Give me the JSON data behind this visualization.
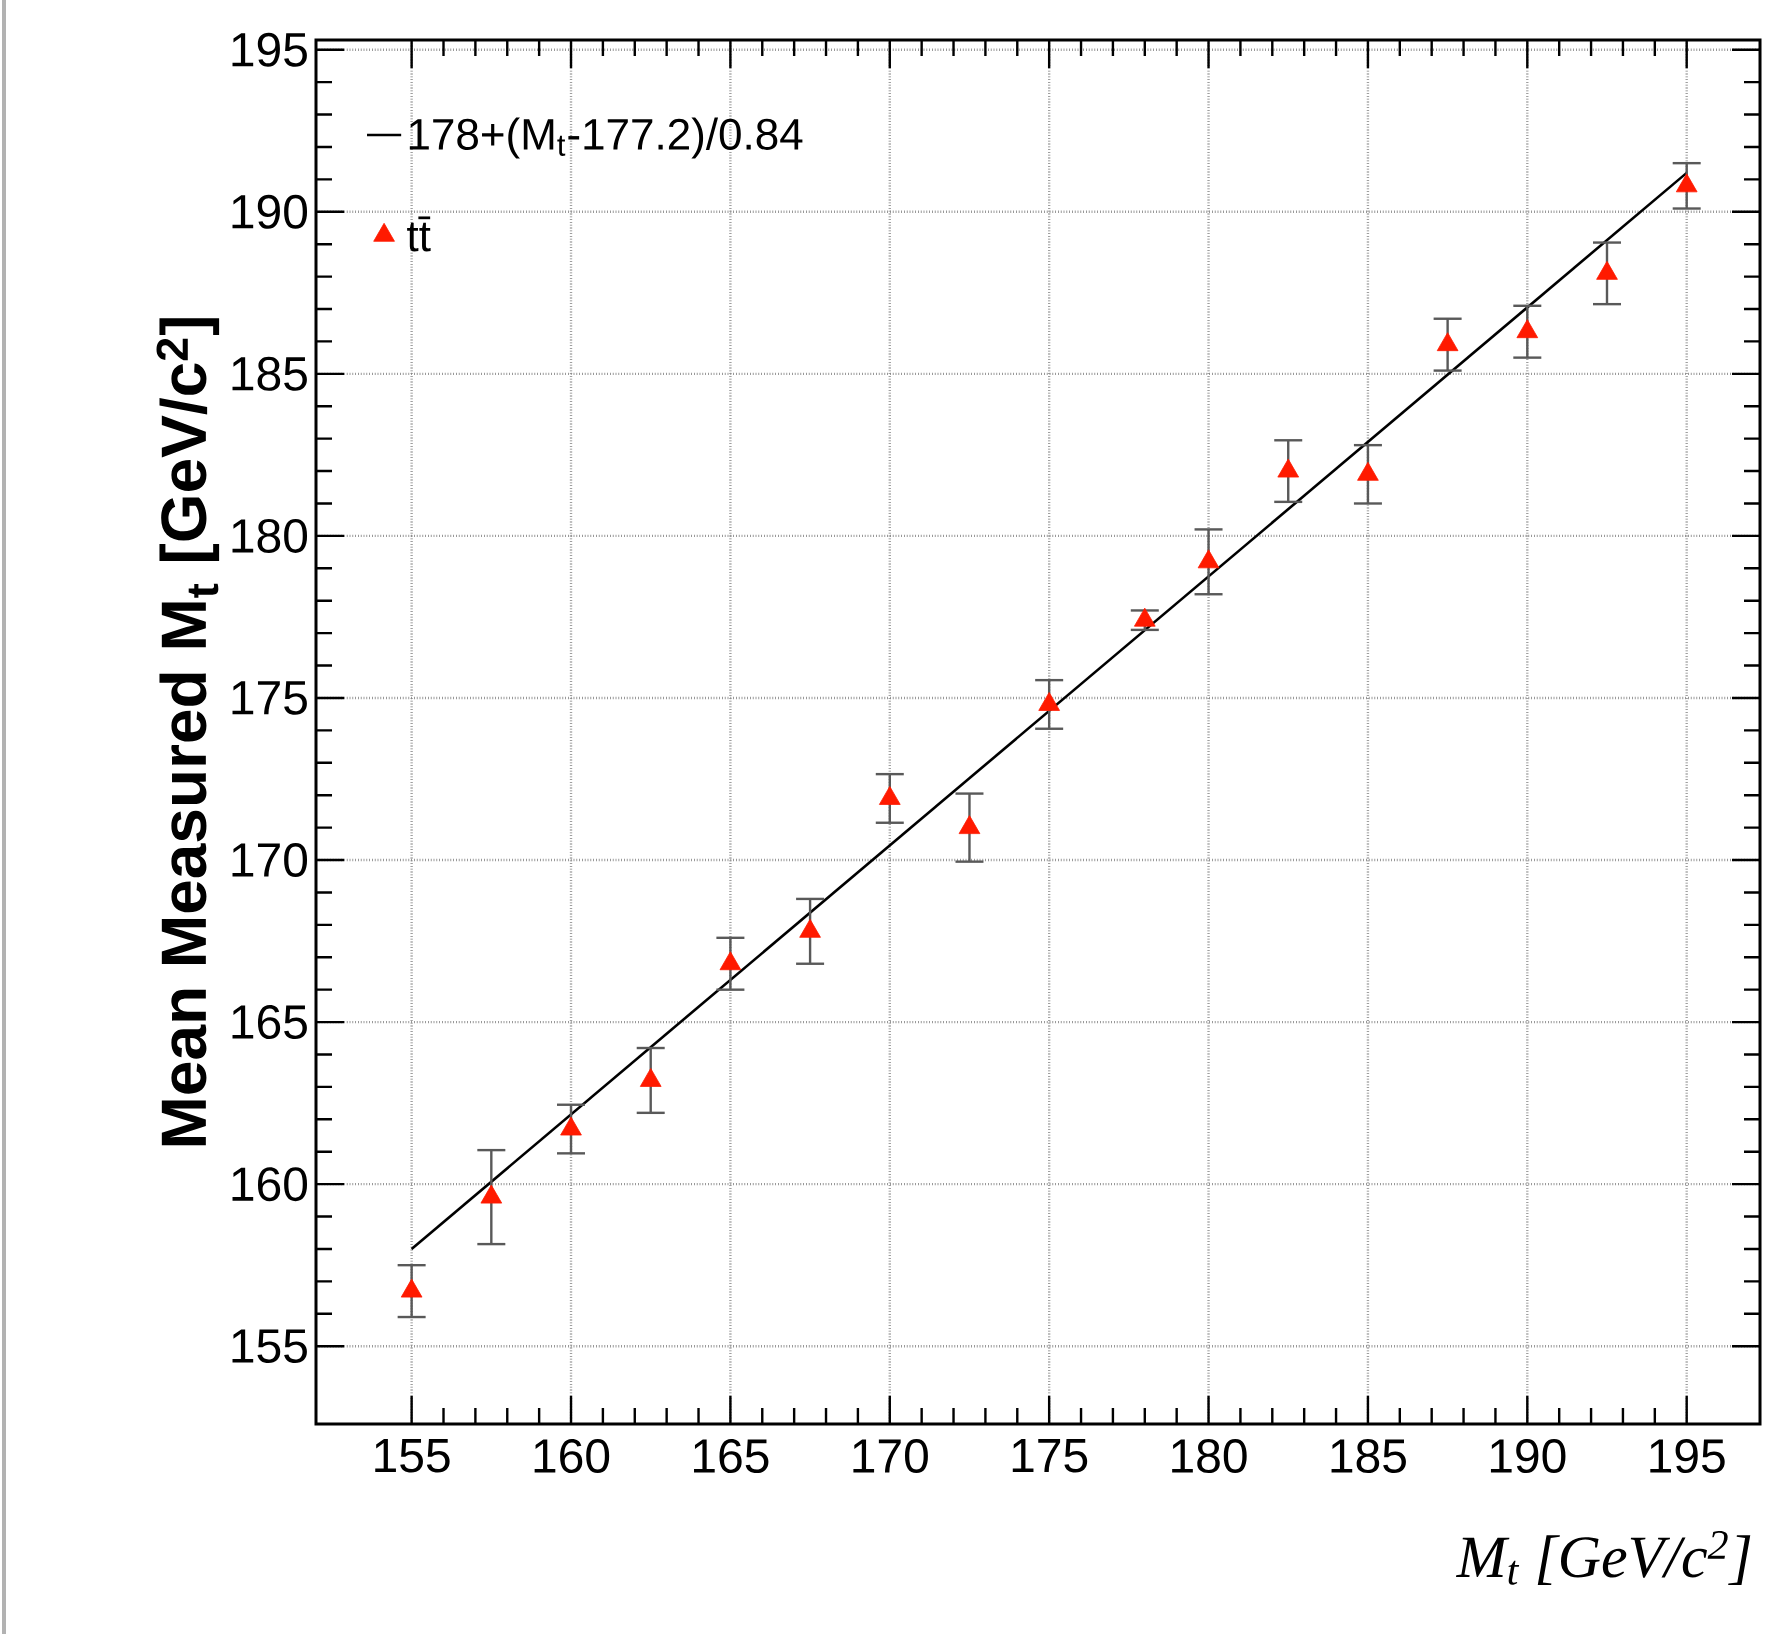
{
  "chart_data": {
    "type": "scatter",
    "xlabel": "M$_{t}$ [GeV/c$^{2}$]",
    "ylabel": "Mean Measured M$_{t}$ [GeV/c$^{2}$]",
    "xlim": [
      152,
      197.3
    ],
    "ylim": [
      152.6,
      195.3
    ],
    "xticks": [
      155,
      160,
      165,
      170,
      175,
      180,
      185,
      190,
      195
    ],
    "yticks": [
      155,
      160,
      165,
      170,
      175,
      180,
      185,
      190,
      195
    ],
    "grid": true,
    "legend": "top left",
    "series": [
      {
        "name": "178+(M$_{t}$-177.2)/0.84",
        "type": "line",
        "color": "#000000",
        "x": [
          155,
          195
        ],
        "values": [
          158.0,
          191.2
        ]
      },
      {
        "name": "tt̄",
        "type": "scatter",
        "marker": "triangle",
        "color": "#ff1a00",
        "x": [
          155,
          157.5,
          160,
          162.5,
          165,
          167.5,
          170,
          172.5,
          175,
          178,
          180,
          182.5,
          185,
          187.5,
          190,
          192.5,
          195
        ],
        "values": [
          156.7,
          159.6,
          161.7,
          163.2,
          166.8,
          167.8,
          171.9,
          171.0,
          174.8,
          177.4,
          179.2,
          182.0,
          181.9,
          185.9,
          186.3,
          188.1,
          190.8
        ],
        "errors": [
          0.8,
          1.45,
          0.75,
          1.0,
          0.8,
          1.0,
          0.75,
          1.05,
          0.75,
          0.3,
          1.0,
          0.95,
          0.9,
          0.8,
          0.8,
          0.95,
          0.7
        ]
      }
    ]
  }
}
